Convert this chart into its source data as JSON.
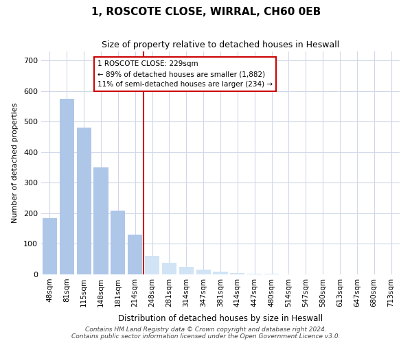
{
  "title": "1, ROSCOTE CLOSE, WIRRAL, CH60 0EB",
  "subtitle": "Size of property relative to detached houses in Heswall",
  "xlabel": "Distribution of detached houses by size in Heswall",
  "ylabel": "Number of detached properties",
  "categories": [
    "48sqm",
    "81sqm",
    "115sqm",
    "148sqm",
    "181sqm",
    "214sqm",
    "248sqm",
    "281sqm",
    "314sqm",
    "347sqm",
    "381sqm",
    "414sqm",
    "447sqm",
    "480sqm",
    "514sqm",
    "547sqm",
    "580sqm",
    "613sqm",
    "647sqm",
    "680sqm",
    "713sqm"
  ],
  "values": [
    185,
    575,
    480,
    350,
    210,
    130,
    60,
    38,
    25,
    15,
    8,
    5,
    3,
    2,
    1,
    1,
    0,
    0,
    0,
    0,
    0
  ],
  "bar_color_left": "#aec6e8",
  "bar_color_right": "#d0e4f5",
  "vline_x_index": 5.5,
  "vline_color": "#cc0000",
  "annotation_text": "1 ROSCOTE CLOSE: 229sqm\n← 89% of detached houses are smaller (1,882)\n11% of semi-detached houses are larger (234) →",
  "annotation_box_color": "#cc0000",
  "ylim": [
    0,
    730
  ],
  "yticks": [
    0,
    100,
    200,
    300,
    400,
    500,
    600,
    700
  ],
  "footer": "Contains HM Land Registry data © Crown copyright and database right 2024.\nContains public sector information licensed under the Open Government Licence v3.0.",
  "bg_color": "#ffffff",
  "grid_color": "#d0d8e8"
}
